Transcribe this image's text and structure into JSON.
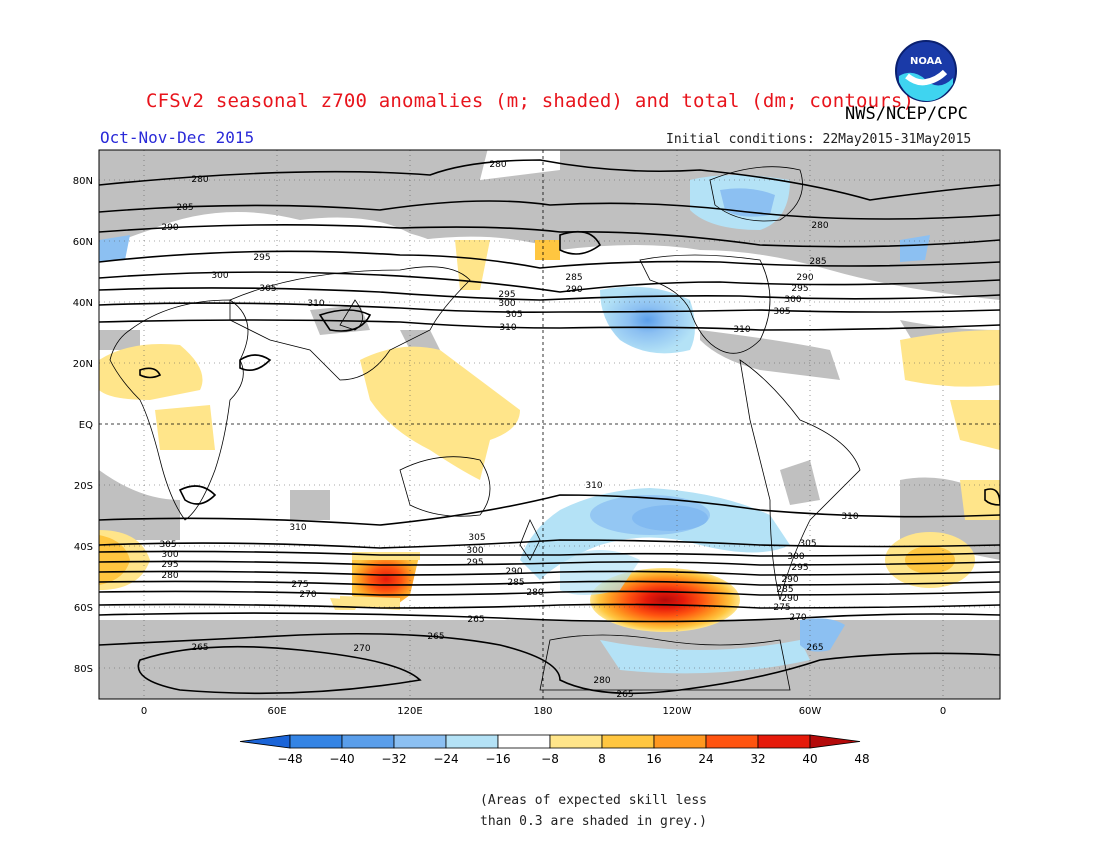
{
  "header": {
    "title": "CFSv2 seasonal z700 anomalies (m; shaded) and total (dm; contours)",
    "agency": "NWS/NCEP/CPC",
    "logo_text": "NOAA",
    "season": "Oct-Nov-Dec 2015",
    "initial_conditions": "Initial conditions: 22May2015-31May2015"
  },
  "map": {
    "lat_labels": [
      "80N",
      "60N",
      "40N",
      "20N",
      "EQ",
      "20S",
      "40S",
      "60S",
      "80S"
    ],
    "lon_labels": [
      "0",
      "60E",
      "120E",
      "180",
      "120W",
      "60W",
      "0"
    ],
    "contour_labels": [
      "280",
      "285",
      "290",
      "295",
      "300",
      "305",
      "310",
      "275",
      "270",
      "265"
    ],
    "colors": {
      "skill_grey": "#c0c0c0",
      "land_outline": "#000000"
    }
  },
  "colorbar": {
    "ticks": [
      "-48",
      "-40",
      "-32",
      "-24",
      "-16",
      "-8",
      "8",
      "16",
      "24",
      "32",
      "40",
      "48"
    ],
    "colors": [
      "#1a64d8",
      "#3484e4",
      "#5a9eea",
      "#8cc0f2",
      "#b4e2f6",
      "#ffffff",
      "#ffe58a",
      "#ffc640",
      "#ff9820",
      "#ff5410",
      "#e61a0a",
      "#b40a0a"
    ]
  },
  "footnote": {
    "line1": "(Areas of expected skill less",
    "line2": "than 0.3 are shaded in grey.)"
  }
}
